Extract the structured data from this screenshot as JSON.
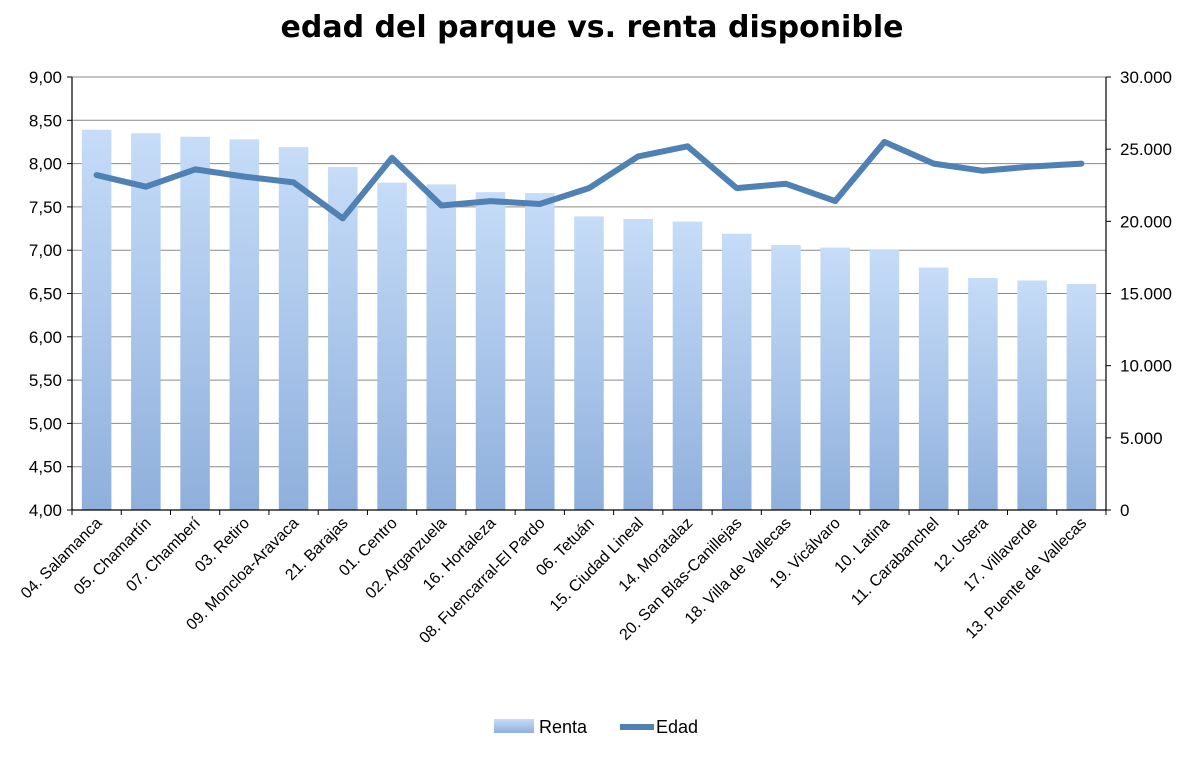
{
  "chart_data": {
    "type": "bar",
    "title": "edad del parque vs. renta disponible",
    "categories": [
      "04. Salamanca",
      "05. Chamartín",
      "07. Chamberí",
      "03. Retiro",
      "09. Moncloa-Aravaca",
      "21. Barajas",
      "01. Centro",
      "02. Arganzuela",
      "16. Hortaleza",
      "08. Fuencarral-El Pardo",
      "06. Tetuán",
      "15. Ciudad Lineal",
      "14. Moratalaz",
      "20. San Blas-Canillejas",
      "18. Villa de Vallecas",
      "19. Vicálvaro",
      "10. Latina",
      "11. Carabanchel",
      "12. Usera",
      "17. Villaverde",
      "13. Puente de Vallecas"
    ],
    "series": [
      {
        "name": "Renta",
        "type": "bar",
        "axis": "left",
        "color": "#a9c9f0",
        "values": [
          8.39,
          8.35,
          8.31,
          8.28,
          8.19,
          7.96,
          7.78,
          7.76,
          7.67,
          7.66,
          7.39,
          7.36,
          7.33,
          7.19,
          7.06,
          7.03,
          7.01,
          6.8,
          6.68,
          6.65,
          6.61
        ]
      },
      {
        "name": "Edad",
        "type": "line",
        "axis": "right",
        "color": "#4f81b4",
        "values": [
          23200,
          22400,
          23600,
          23100,
          22700,
          20200,
          24400,
          21100,
          21400,
          21200,
          22300,
          24500,
          25200,
          22300,
          22600,
          21400,
          25500,
          24000,
          23500,
          23800,
          24000
        ]
      }
    ],
    "y_left": {
      "min": 4.0,
      "max": 9.0,
      "step": 0.5,
      "tick_labels": [
        "4,00",
        "4,50",
        "5,00",
        "5,50",
        "6,00",
        "6,50",
        "7,00",
        "7,50",
        "8,00",
        "8,50",
        "9,00"
      ]
    },
    "y_right": {
      "min": 0,
      "max": 30000,
      "step": 5000,
      "tick_labels": [
        "0",
        "5.000",
        "10.000",
        "15.000",
        "20.000",
        "25.000",
        "30.000"
      ]
    },
    "grid": true,
    "legend": {
      "position": "bottom",
      "entries": [
        "Renta",
        "Edad"
      ]
    }
  }
}
